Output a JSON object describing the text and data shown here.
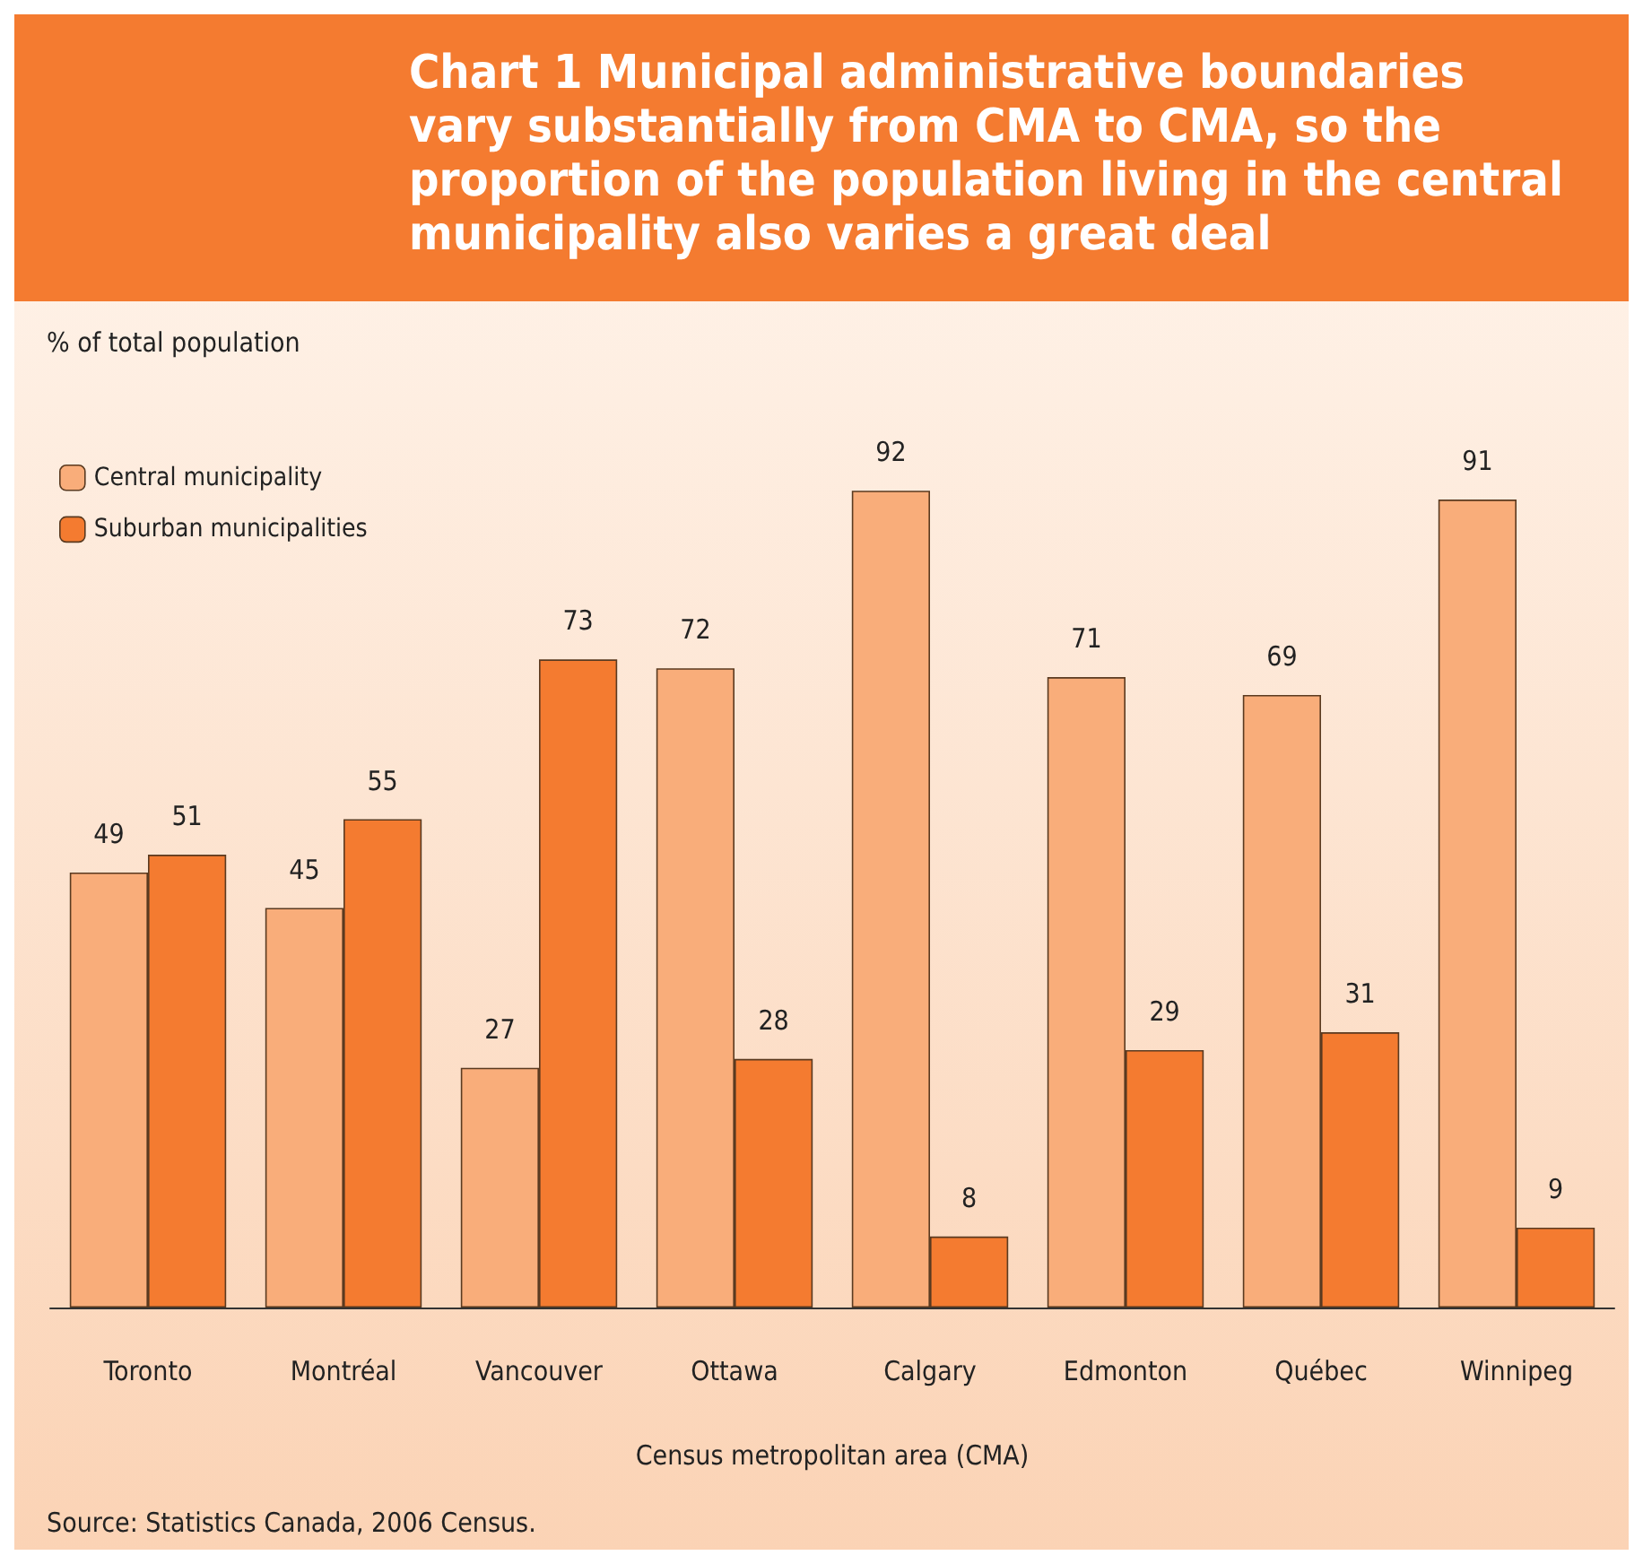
{
  "chart_data": {
    "type": "bar",
    "title": "Chart 1  Municipal administrative boundaries vary substantially from CMA to CMA, so the proportion of the population living in the central municipality also varies a great deal",
    "ylabel": "% of total population",
    "xlabel": "Census metropolitan area (CMA)",
    "annotations": [
      "Source: Statistics Canada, 2006 Census."
    ],
    "categories": [
      "Toronto",
      "Montréal",
      "Vancouver",
      "Ottawa",
      "Calgary",
      "Edmonton",
      "Québec",
      "Winnipeg"
    ],
    "series": [
      {
        "name": "Central municipality",
        "color": "#f9ad7a",
        "values": [
          49,
          45,
          27,
          72,
          92,
          71,
          69,
          91
        ]
      },
      {
        "name": "Suburban municipalities",
        "color": "#f47b30",
        "values": [
          51,
          55,
          73,
          28,
          8,
          29,
          31,
          9
        ]
      }
    ],
    "data_labels": true,
    "legend": "top left",
    "grid": false
  }
}
